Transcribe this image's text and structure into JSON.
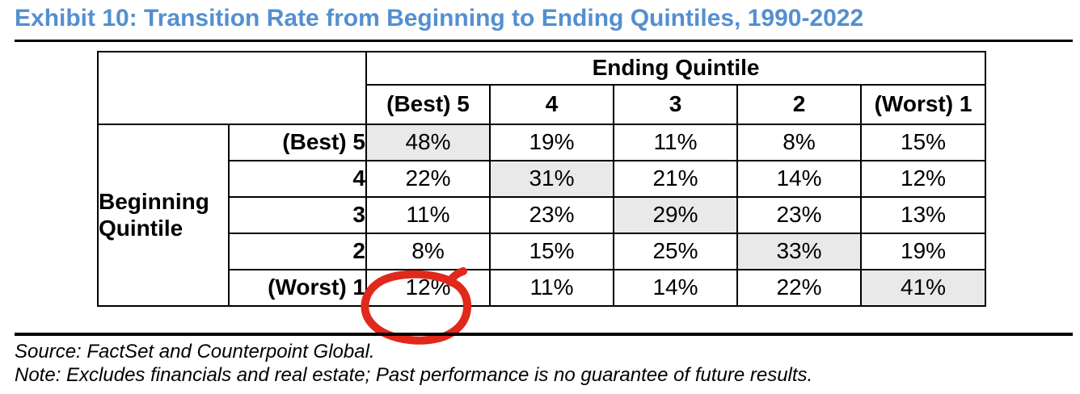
{
  "title": "Exhibit 10: Transition Rate from Beginning to Ending Quintiles, 1990-2022",
  "colors": {
    "title_blue": "#548FD0",
    "highlight_gray": "#E9E9E9",
    "annotation_red": "#E0281C"
  },
  "table": {
    "col_group_header": "Ending Quintile",
    "row_group_header": "Beginning Quintile",
    "column_headers": [
      "(Best) 5",
      "4",
      "3",
      "2",
      "(Worst) 1"
    ],
    "row_headers": [
      "(Best) 5",
      "4",
      "3",
      "2",
      "(Worst) 1"
    ],
    "rows": [
      [
        "48%",
        "19%",
        "11%",
        "8%",
        "15%"
      ],
      [
        "22%",
        "31%",
        "21%",
        "14%",
        "12%"
      ],
      [
        "11%",
        "23%",
        "29%",
        "23%",
        "13%"
      ],
      [
        "8%",
        "15%",
        "25%",
        "33%",
        "19%"
      ],
      [
        "12%",
        "11%",
        "14%",
        "22%",
        "41%"
      ]
    ],
    "highlighted_cells": [
      [
        0,
        0
      ],
      [
        1,
        1
      ],
      [
        2,
        2
      ],
      [
        3,
        3
      ],
      [
        4,
        4
      ]
    ],
    "circled_cell": [
      4,
      0
    ],
    "circled_value": "12%"
  },
  "footer": {
    "source": "Source: FactSet and Counterpoint Global.",
    "note": "Note: Excludes financials and real estate; Past performance is no guarantee of future results."
  }
}
